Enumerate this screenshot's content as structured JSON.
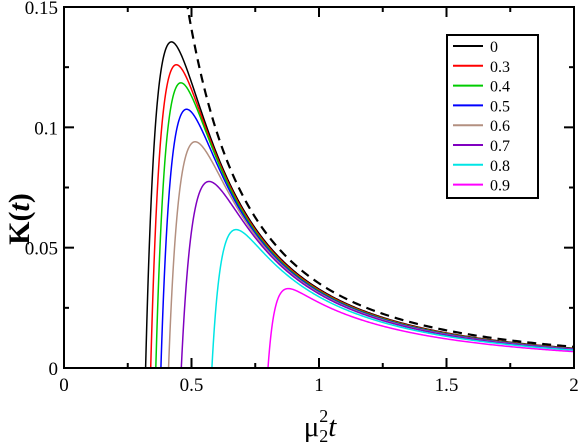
{
  "chart_data": {
    "type": "line",
    "xlabel": {
      "base": "μ",
      "sub": "2",
      "sup": "2",
      "tail": "t"
    },
    "ylabel": {
      "head": "K(",
      "var": "t",
      "tail": ")"
    },
    "xlim": [
      0,
      2
    ],
    "ylim": [
      0,
      0.15
    ],
    "xticks": [
      0,
      0.5,
      1,
      1.5,
      2
    ],
    "xtick_labels": [
      "0",
      "0.5",
      "1",
      "1.5",
      "2"
    ],
    "yticks": [
      0,
      0.05,
      0.1,
      0.15
    ],
    "ytick_labels": [
      "0",
      "0.05",
      "0.1",
      "0.15"
    ],
    "grid": false,
    "legend_position": "top-right",
    "series": [
      {
        "name": "0",
        "color": "#000000",
        "t0": 0.32,
        "peak_x": 0.4,
        "peak_y": 0.1355
      },
      {
        "name": "0.3",
        "color": "#ff0000",
        "t0": 0.34,
        "peak_x": 0.42,
        "peak_y": 0.126
      },
      {
        "name": "0.4",
        "color": "#00cc00",
        "t0": 0.36,
        "peak_x": 0.44,
        "peak_y": 0.1185
      },
      {
        "name": "0.5",
        "color": "#0000ff",
        "t0": 0.38,
        "peak_x": 0.46,
        "peak_y": 0.1075
      },
      {
        "name": "0.6",
        "color": "#b39080",
        "t0": 0.41,
        "peak_x": 0.5,
        "peak_y": 0.094
      },
      {
        "name": "0.7",
        "color": "#8000c0",
        "t0": 0.46,
        "peak_x": 0.56,
        "peak_y": 0.0775
      },
      {
        "name": "0.8",
        "color": "#00e5e5",
        "t0": 0.58,
        "peak_x": 0.68,
        "peak_y": 0.0575
      },
      {
        "name": "0.9",
        "color": "#ff00ff",
        "t0": 0.8,
        "peak_x": 0.92,
        "peak_y": 0.033
      }
    ],
    "bound": {
      "style": "dashed",
      "color": "#000000",
      "coef": 0.0352,
      "power": 2,
      "x_start": 0.48,
      "x_end": 2.0
    },
    "tail_values_at_x2": {
      "0": 0.0082,
      "0.3": 0.0081,
      "0.4": 0.008,
      "0.5": 0.0079,
      "0.6": 0.0078,
      "0.7": 0.0077,
      "0.8": 0.0074,
      "0.9": 0.0068
    }
  }
}
